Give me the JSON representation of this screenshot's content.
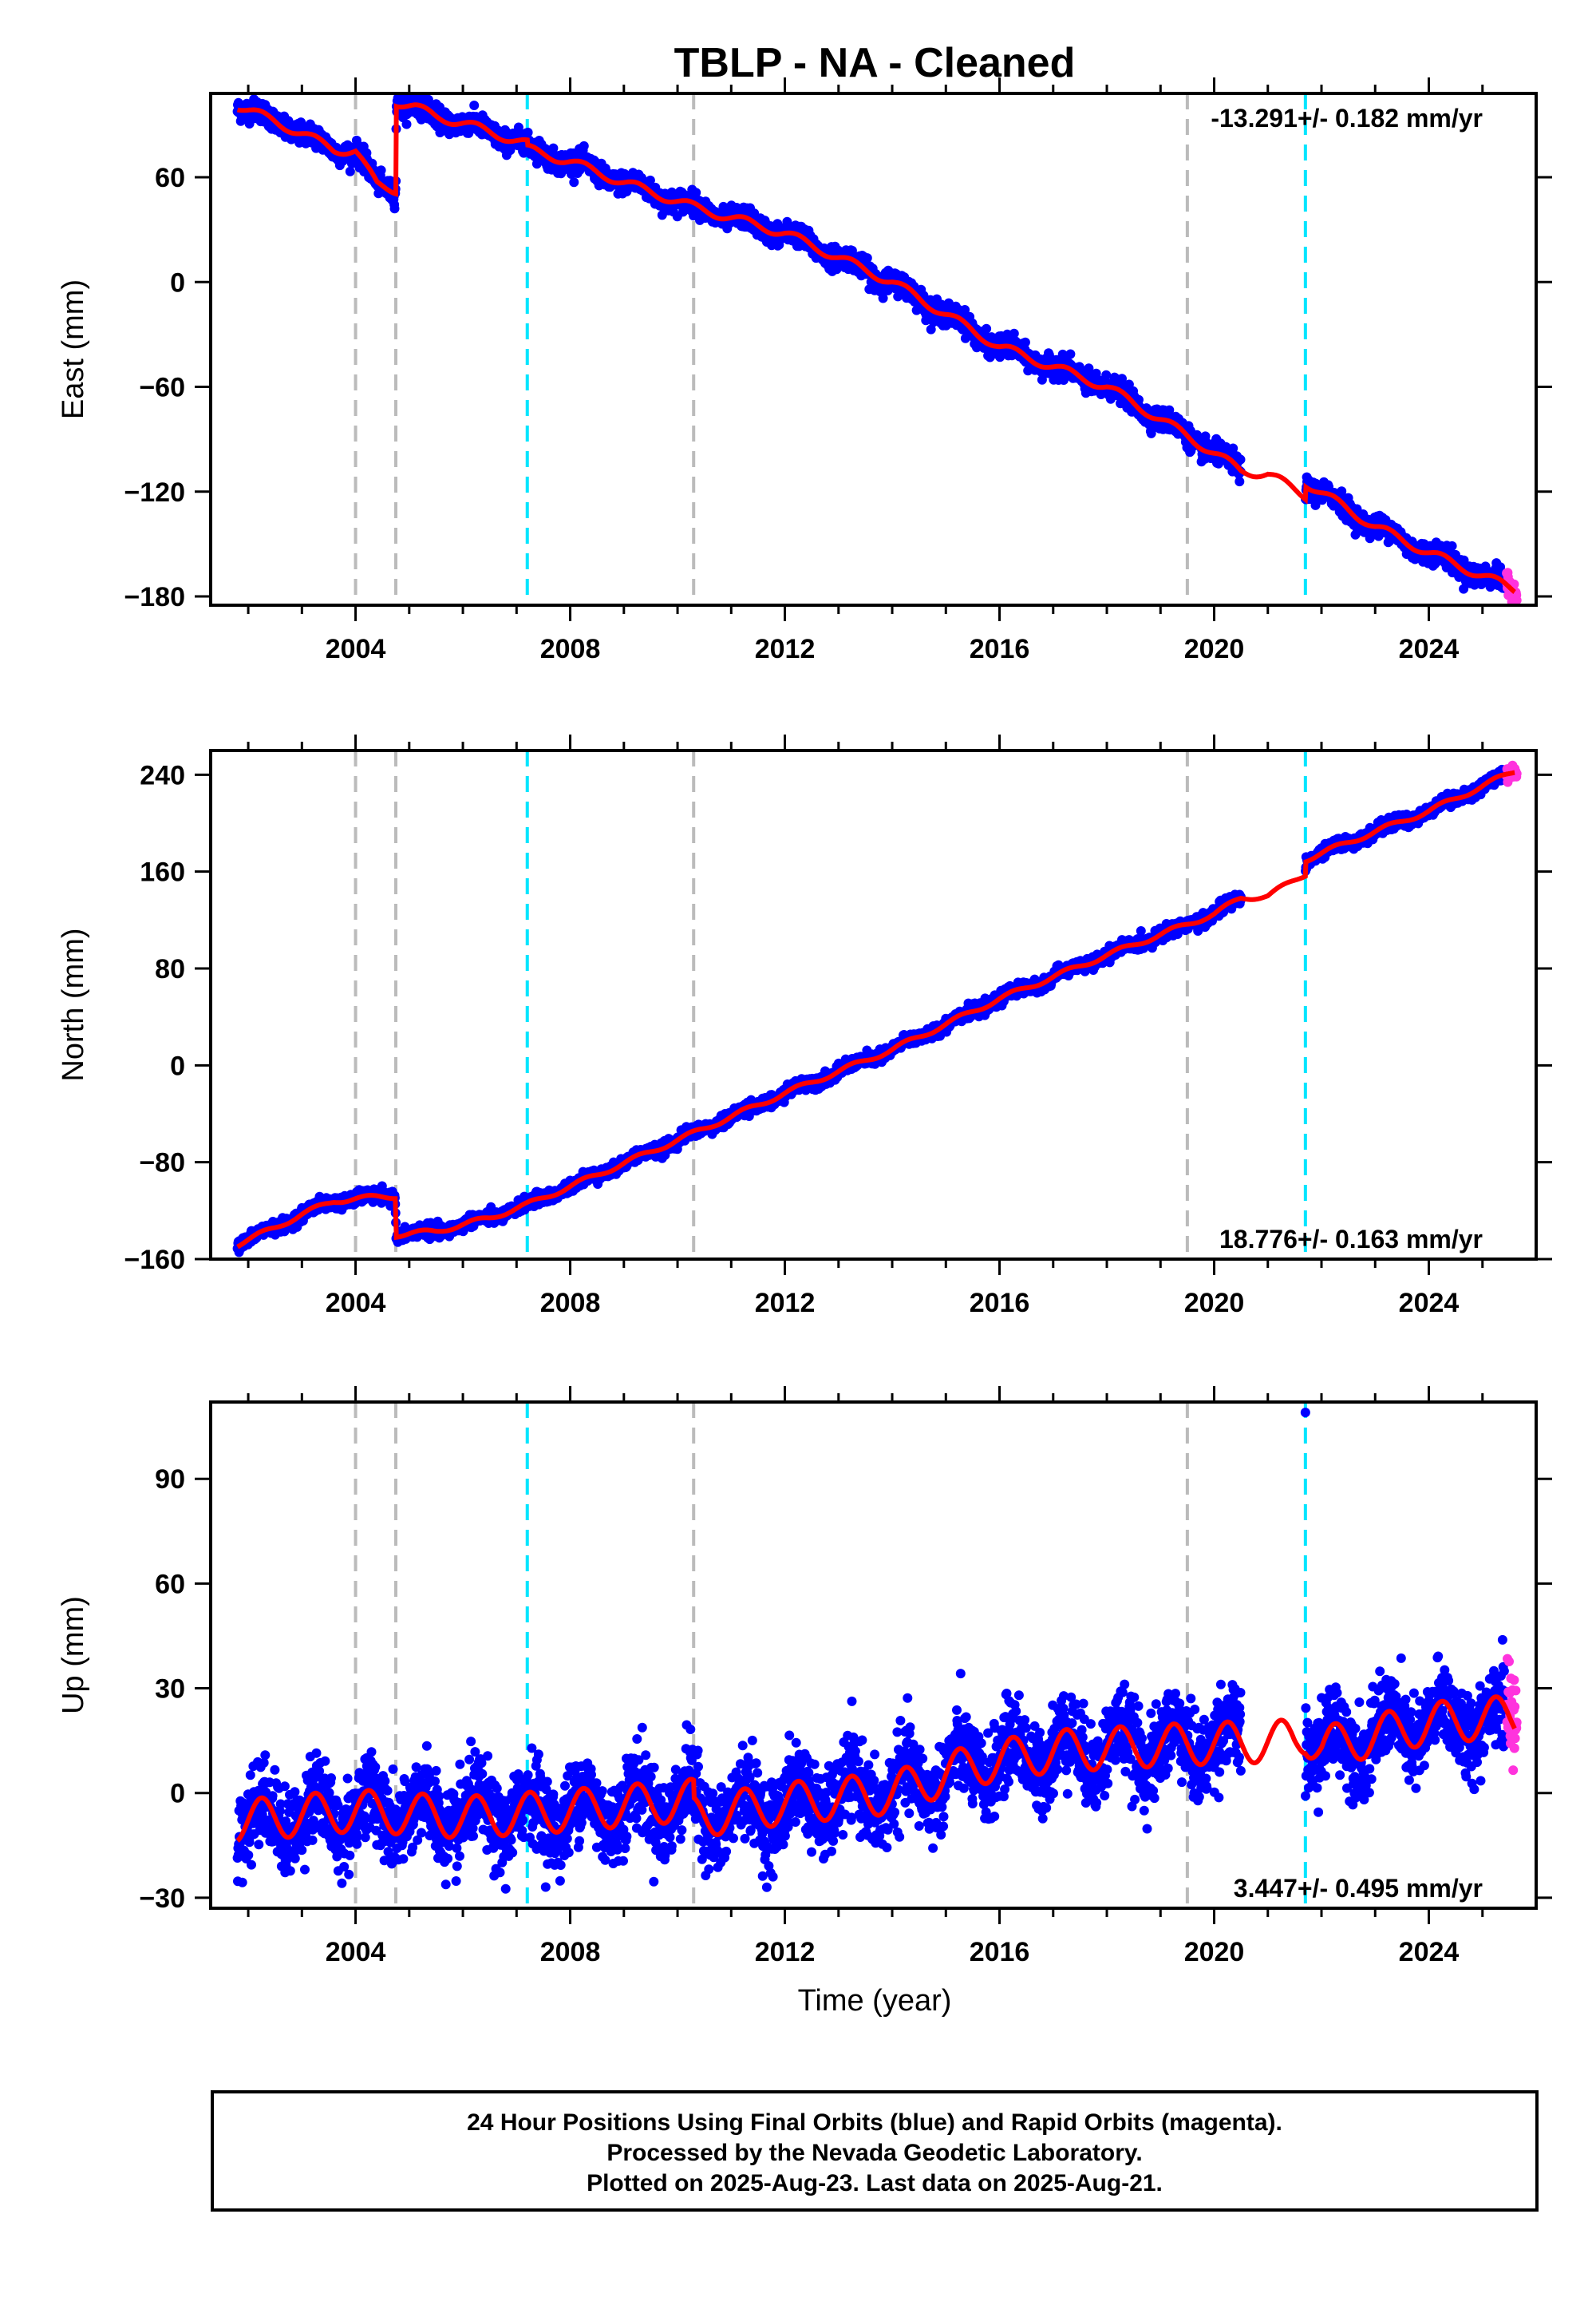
{
  "chart_data": {
    "type": "scatter",
    "title": "TBLP  - NA - Cleaned",
    "xlabel": "Time (year)",
    "xlim": [
      2001.3,
      2026.0
    ],
    "xticks": [
      2004,
      2008,
      2012,
      2016,
      2020,
      2024
    ],
    "colors": {
      "final_orbits": "#0000ff",
      "rapid_orbits": "#ff33dd",
      "model_fit": "#ff0000",
      "equipment_change": "#bbbbbb",
      "earthquake": "#00e5ff"
    },
    "vlines_gray": [
      2004.0,
      2004.75,
      2010.3,
      2019.5
    ],
    "vlines_cyan": [
      2007.2,
      2021.7
    ],
    "panels": [
      {
        "id": "east",
        "ylabel": "East (mm)",
        "ylim": [
          -185,
          108
        ],
        "yticks": [
          60,
          0,
          -60,
          -120,
          -180
        ],
        "rate_text": "-13.291+/- 0.182 mm/yr",
        "rate_position": "top-right",
        "noise": 3,
        "seasonal_amp": 2.5,
        "gap": [
          2020.5,
          2021.7
        ],
        "fit_knots": [
          [
            2001.8,
            101
          ],
          [
            2002.5,
            92
          ],
          [
            2003.0,
            85
          ],
          [
            2003.6,
            76
          ],
          [
            2004.0,
            75
          ],
          [
            2004.2,
            65
          ],
          [
            2004.4,
            56
          ],
          [
            2004.75,
            53
          ],
          [
            2004.76,
            103
          ],
          [
            2005.1,
            100
          ],
          [
            2005.5,
            95
          ],
          [
            2006.0,
            91
          ],
          [
            2007.2,
            79
          ],
          [
            2007.21,
            76
          ],
          [
            2008.0,
            69
          ],
          [
            2009.0,
            57
          ],
          [
            2010.3,
            43
          ],
          [
            2012.0,
            28
          ],
          [
            2014.0,
            0
          ],
          [
            2016.0,
            -37
          ],
          [
            2018.0,
            -60
          ],
          [
            2019.5,
            -88
          ],
          [
            2020.5,
            -108
          ],
          [
            2021.0,
            -110
          ],
          [
            2021.7,
            -122
          ],
          [
            2021.71,
            -115
          ],
          [
            2023.0,
            -140
          ],
          [
            2024.0,
            -155
          ],
          [
            2025.6,
            -176
          ]
        ]
      },
      {
        "id": "north",
        "ylabel": "North (mm)",
        "ylim": [
          -160,
          260
        ],
        "yticks": [
          240,
          160,
          80,
          0,
          -80,
          -160
        ],
        "rate_text": "18.776+/- 0.163 mm/yr",
        "rate_position": "bottom-right",
        "noise": 2.5,
        "seasonal_amp": 2,
        "gap": [
          2020.5,
          2021.7
        ],
        "fit_knots": [
          [
            2001.8,
            -148
          ],
          [
            2002.5,
            -134
          ],
          [
            2003.0,
            -123
          ],
          [
            2003.6,
            -112
          ],
          [
            2004.0,
            -110
          ],
          [
            2004.74,
            -108
          ],
          [
            2004.76,
            -140
          ],
          [
            2005.5,
            -137
          ],
          [
            2006.5,
            -126
          ],
          [
            2007.2,
            -115
          ],
          [
            2008.0,
            -100
          ],
          [
            2010.3,
            -56
          ],
          [
            2012.0,
            -23
          ],
          [
            2014.0,
            13
          ],
          [
            2016.0,
            55
          ],
          [
            2018.0,
            91
          ],
          [
            2020.0,
            125
          ],
          [
            2020.5,
            138
          ],
          [
            2021.0,
            140
          ],
          [
            2021.7,
            158
          ],
          [
            2021.71,
            170
          ],
          [
            2023.0,
            193
          ],
          [
            2024.0,
            210
          ],
          [
            2025.6,
            243
          ]
        ]
      },
      {
        "id": "up",
        "ylabel": "Up (mm)",
        "ylim": [
          -33,
          112
        ],
        "yticks": [
          90,
          60,
          30,
          0,
          -30
        ],
        "rate_text": "3.447+/- 0.495 mm/yr",
        "rate_position": "bottom-right",
        "noise": 6,
        "seasonal_amp": 6,
        "gap": [
          2020.5,
          2021.7
        ],
        "outlier": [
          2021.7,
          109
        ],
        "fit_knots": [
          [
            2001.8,
            -8
          ],
          [
            2004.0,
            -5
          ],
          [
            2006.0,
            -7
          ],
          [
            2008.0,
            -5
          ],
          [
            2010.3,
            -2
          ],
          [
            2010.31,
            -7
          ],
          [
            2012.0,
            -3
          ],
          [
            2014.0,
            0
          ],
          [
            2015.5,
            8
          ],
          [
            2017.0,
            12
          ],
          [
            2019.5,
            14
          ],
          [
            2021.5,
            15
          ],
          [
            2021.7,
            17
          ],
          [
            2022.0,
            13
          ],
          [
            2024.0,
            20
          ],
          [
            2025.6,
            22
          ]
        ]
      }
    ]
  },
  "footer": {
    "line1": "24 Hour Positions Using Final Orbits (blue) and Rapid Orbits (magenta).",
    "line2": "Processed by the Nevada Geodetic Laboratory.",
    "line3": "Plotted on 2025-Aug-23. Last data on 2025-Aug-21."
  }
}
